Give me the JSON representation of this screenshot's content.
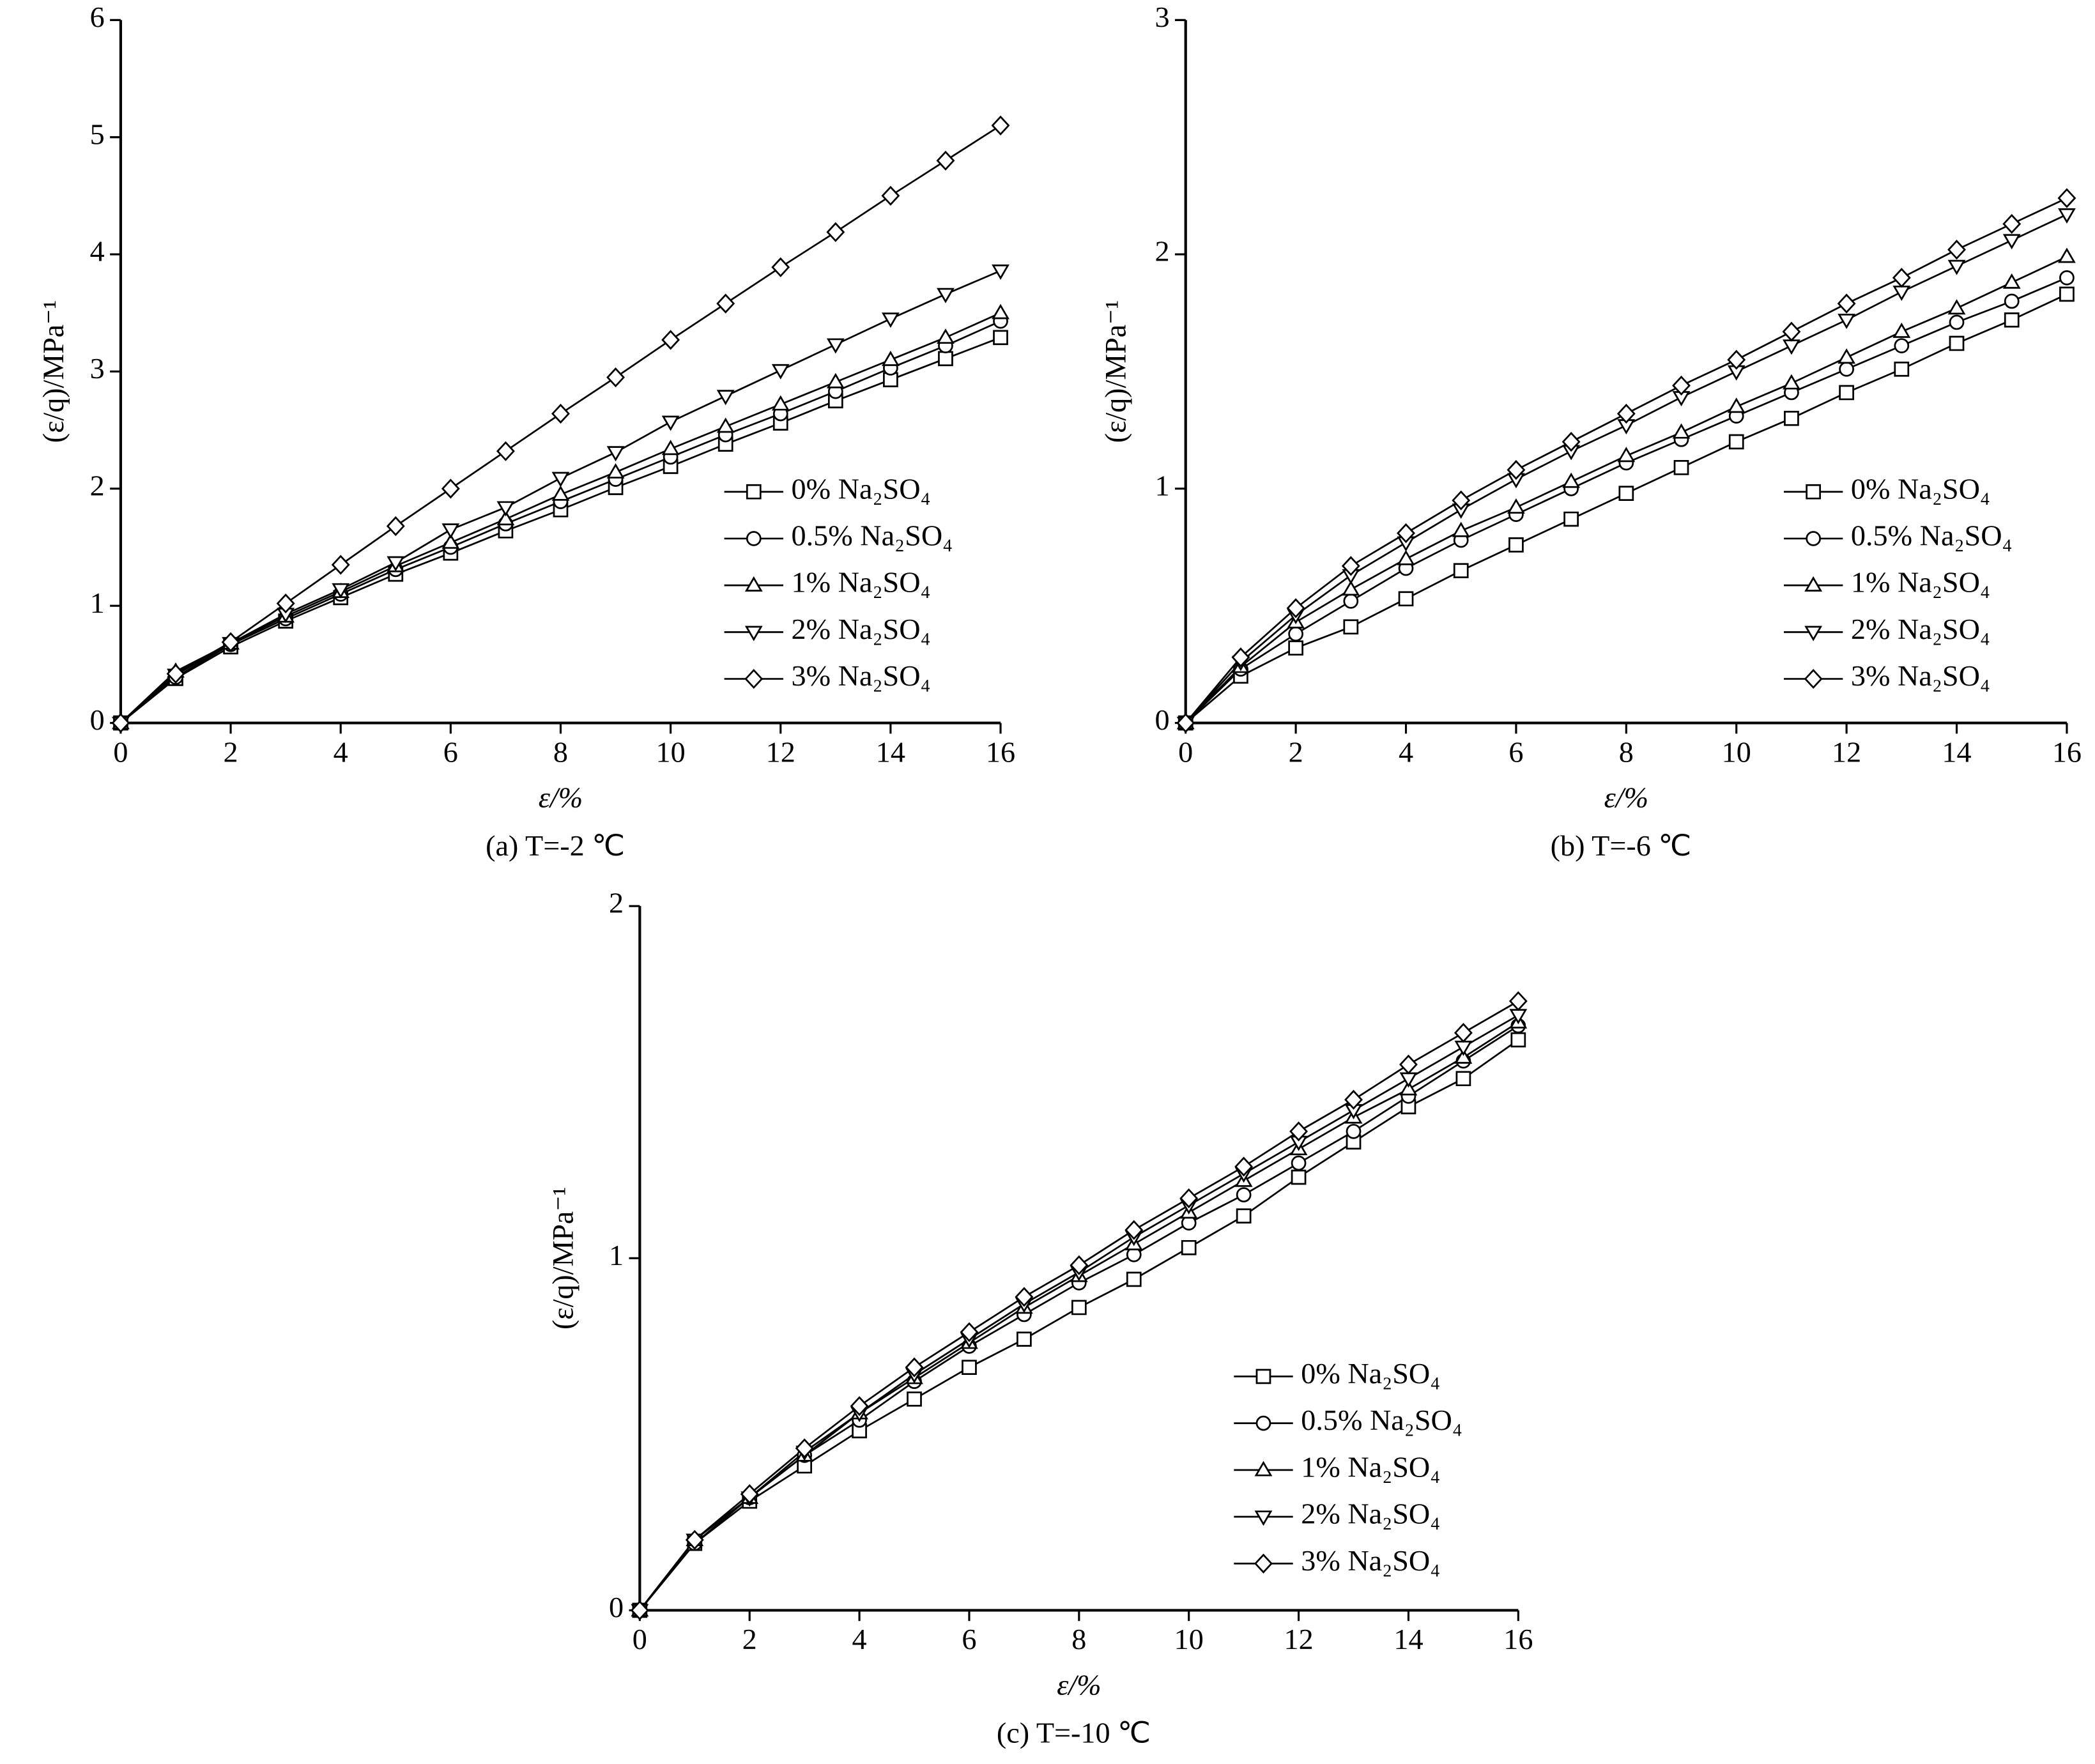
{
  "chart_data": [
    {
      "type": "line",
      "title": "(a) T=-2 ℃",
      "xlabel": "ε/%",
      "ylabel": "(ε/q)/MPa⁻¹",
      "x": [
        0,
        1,
        2,
        3,
        4,
        5,
        6,
        7,
        8,
        9,
        10,
        11,
        12,
        13,
        14,
        15,
        16
      ],
      "xlim": [
        0,
        16
      ],
      "xticks": [
        0,
        2,
        4,
        6,
        8,
        10,
        12,
        14,
        16
      ],
      "ylim": [
        0,
        6
      ],
      "yticks": [
        0,
        1,
        2,
        3,
        4,
        5,
        6
      ],
      "series": [
        {
          "name": "0% Na₂SO₄",
          "color": "#000000",
          "marker": "square",
          "values": [
            0,
            0.38,
            0.65,
            0.87,
            1.07,
            1.27,
            1.45,
            1.64,
            1.82,
            2.01,
            2.19,
            2.38,
            2.56,
            2.75,
            2.93,
            3.11,
            3.29
          ]
        },
        {
          "name": "0.5% Na₂SO₄",
          "color": "#000000",
          "marker": "circle",
          "values": [
            0,
            0.39,
            0.67,
            0.89,
            1.1,
            1.31,
            1.5,
            1.7,
            1.89,
            2.08,
            2.27,
            2.46,
            2.64,
            2.83,
            3.03,
            3.22,
            3.43
          ]
        },
        {
          "name": "1% Na₂SO₄",
          "color": "#000000",
          "marker": "triangle-up",
          "values": [
            0,
            0.44,
            0.68,
            0.91,
            1.12,
            1.34,
            1.54,
            1.74,
            1.95,
            2.14,
            2.34,
            2.53,
            2.72,
            2.91,
            3.1,
            3.29,
            3.5
          ]
        },
        {
          "name": "2% Na₂SO₄",
          "color": "#000000",
          "marker": "triangle-down",
          "values": [
            0,
            0.41,
            0.68,
            0.93,
            1.14,
            1.37,
            1.65,
            1.84,
            2.09,
            2.31,
            2.57,
            2.79,
            3.01,
            3.23,
            3.45,
            3.66,
            3.86
          ]
        },
        {
          "name": "3% Na₂SO₄",
          "color": "#000000",
          "marker": "diamond",
          "values": [
            0,
            0.42,
            0.69,
            1.02,
            1.35,
            1.68,
            2.0,
            2.32,
            2.64,
            2.95,
            3.27,
            3.58,
            3.89,
            4.19,
            4.5,
            4.8,
            5.1
          ]
        }
      ]
    },
    {
      "type": "line",
      "title": "(b) T=-6 ℃",
      "xlabel": "ε/%",
      "ylabel": "(ε/q)/MPa⁻¹",
      "x": [
        0,
        1,
        2,
        3,
        4,
        5,
        6,
        7,
        8,
        9,
        10,
        11,
        12,
        13,
        14,
        15,
        16
      ],
      "xlim": [
        0,
        16
      ],
      "xticks": [
        0,
        2,
        4,
        6,
        8,
        10,
        12,
        14,
        16
      ],
      "ylim": [
        0,
        3
      ],
      "yticks": [
        0,
        1,
        2,
        3
      ],
      "series": [
        {
          "name": "0% Na₂SO₄",
          "color": "#000000",
          "marker": "square",
          "values": [
            0,
            0.2,
            0.32,
            0.41,
            0.53,
            0.65,
            0.76,
            0.87,
            0.98,
            1.09,
            1.2,
            1.3,
            1.41,
            1.51,
            1.62,
            1.72,
            1.83
          ]
        },
        {
          "name": "0.5% Na₂SO₄",
          "color": "#000000",
          "marker": "circle",
          "values": [
            0,
            0.23,
            0.38,
            0.52,
            0.66,
            0.78,
            0.89,
            1.0,
            1.11,
            1.21,
            1.31,
            1.41,
            1.51,
            1.61,
            1.71,
            1.8,
            1.9
          ]
        },
        {
          "name": "1% Na₂SO₄",
          "color": "#000000",
          "marker": "triangle-up",
          "values": [
            0,
            0.24,
            0.43,
            0.57,
            0.7,
            0.82,
            0.92,
            1.03,
            1.14,
            1.24,
            1.35,
            1.45,
            1.56,
            1.67,
            1.77,
            1.88,
            1.99
          ]
        },
        {
          "name": "2% Na₂SO₄",
          "color": "#000000",
          "marker": "triangle-down",
          "values": [
            0,
            0.26,
            0.46,
            0.63,
            0.77,
            0.91,
            1.04,
            1.16,
            1.27,
            1.39,
            1.5,
            1.61,
            1.72,
            1.84,
            1.95,
            2.06,
            2.17
          ]
        },
        {
          "name": "3% Na₂SO₄",
          "color": "#000000",
          "marker": "diamond",
          "values": [
            0,
            0.28,
            0.49,
            0.67,
            0.81,
            0.95,
            1.08,
            1.2,
            1.32,
            1.44,
            1.55,
            1.67,
            1.79,
            1.9,
            2.02,
            2.13,
            2.24
          ]
        }
      ]
    },
    {
      "type": "line",
      "title": "(c) T=-10 ℃",
      "xlabel": "ε/%",
      "ylabel": "(ε/q)/MPa⁻¹",
      "x": [
        0,
        1,
        2,
        3,
        4,
        5,
        6,
        7,
        8,
        9,
        10,
        11,
        12,
        13,
        14,
        15,
        16
      ],
      "xlim": [
        0,
        16
      ],
      "xticks": [
        0,
        2,
        4,
        6,
        8,
        10,
        12,
        14,
        16
      ],
      "ylim": [
        0,
        2
      ],
      "yticks": [
        0,
        1,
        2
      ],
      "series": [
        {
          "name": "0% Na₂SO₄",
          "color": "#000000",
          "marker": "square",
          "values": [
            0,
            0.19,
            0.31,
            0.41,
            0.51,
            0.6,
            0.69,
            0.77,
            0.86,
            0.94,
            1.03,
            1.12,
            1.23,
            1.33,
            1.43,
            1.51,
            1.62
          ]
        },
        {
          "name": "0.5% Na₂SO₄",
          "color": "#000000",
          "marker": "circle",
          "values": [
            0,
            0.19,
            0.32,
            0.44,
            0.54,
            0.65,
            0.75,
            0.84,
            0.93,
            1.01,
            1.1,
            1.18,
            1.27,
            1.36,
            1.46,
            1.56,
            1.66
          ]
        },
        {
          "name": "1% Na₂SO₄",
          "color": "#000000",
          "marker": "triangle-up",
          "values": [
            0,
            0.2,
            0.32,
            0.44,
            0.56,
            0.66,
            0.76,
            0.86,
            0.95,
            1.04,
            1.13,
            1.22,
            1.31,
            1.4,
            1.48,
            1.57,
            1.67
          ]
        },
        {
          "name": "2% Na₂SO₄",
          "color": "#000000",
          "marker": "triangle-down",
          "values": [
            0,
            0.2,
            0.32,
            0.45,
            0.56,
            0.67,
            0.77,
            0.87,
            0.96,
            1.06,
            1.15,
            1.24,
            1.33,
            1.42,
            1.51,
            1.6,
            1.69
          ]
        },
        {
          "name": "3% Na₂SO₄",
          "color": "#000000",
          "marker": "diamond",
          "values": [
            0,
            0.2,
            0.33,
            0.46,
            0.58,
            0.69,
            0.79,
            0.89,
            0.98,
            1.08,
            1.17,
            1.26,
            1.36,
            1.45,
            1.55,
            1.64,
            1.73
          ]
        }
      ]
    }
  ]
}
